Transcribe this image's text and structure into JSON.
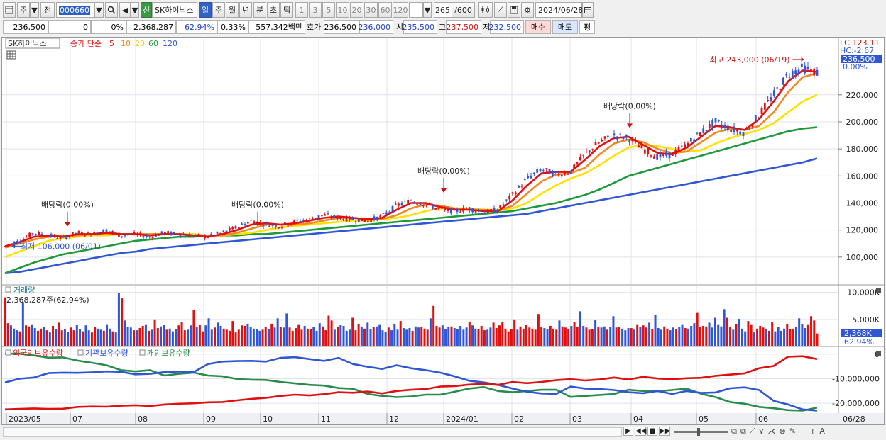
{
  "toolbar": {
    "jong": "주",
    "jeon": "전",
    "code": "000660",
    "shin": "신",
    "stock_name": "SK하이닉스",
    "periods": [
      "일",
      "주",
      "월",
      "년",
      "분",
      "초",
      "틱"
    ],
    "active_period": "일",
    "tick_units": [
      "1",
      "3",
      "5",
      "10",
      "20",
      "30",
      "60",
      "120"
    ],
    "count": "265",
    "count_total": "/600",
    "date": "2024/06/28"
  },
  "quote": {
    "price": "236,500",
    "change": "0",
    "change_pct": "0%",
    "volume": "2,368,287",
    "vol_ratio": "62.94%",
    "turnover_pct": "0.33%",
    "amount": "557,342백만",
    "hoga_label": "호가",
    "hoga_value": "236,500",
    "hoga_value2": "236,000",
    "open_label": "시",
    "open": "235,500",
    "high_label": "고",
    "high": "237,500",
    "low_label": "저",
    "low": "232,500",
    "buy_button": "매수",
    "sell_button": "매도",
    "pyeong_button": "평"
  },
  "legend": {
    "stock": "SK하이닉스",
    "price_label": "종가 단순",
    "ma_periods": [
      "5",
      "10",
      "20",
      "60",
      "120"
    ]
  },
  "volume_panel": {
    "title": "거래량",
    "subtitle": "2,368,287주(62.94%)"
  },
  "holdings_panel": {
    "items": [
      "외국인보유수량",
      "기관보유수량",
      "개인보유수량"
    ]
  },
  "chart_data": [
    {
      "type": "candlestick",
      "title": "SK하이닉스",
      "x_start": "2023/05",
      "x_end": "06/28",
      "x_ticks": [
        "2023/05",
        "07",
        "08",
        "09",
        "10",
        "11",
        "12",
        "2024/01",
        "02",
        "03",
        "04",
        "05",
        "06",
        "06/28"
      ],
      "ylim": [
        80000,
        255000
      ],
      "y_ticks": [
        "100,000",
        "120,000",
        "140,000",
        "160,000",
        "180,000",
        "200,000",
        "220,000"
      ],
      "current_price": "236,500",
      "current_pct": "0.00%",
      "lc": "LC:123.11",
      "hc": "HC:-2.67",
      "high_label": "최고 243,000 (06/19)",
      "high": 243000,
      "low_label": "최저 106,000 (06/01)",
      "low": 106000,
      "dividend_markers": [
        {
          "label": "배당락(0.00%)",
          "month": "07",
          "price": 120000
        },
        {
          "label": "배당락(0.00%)",
          "month": "10",
          "price": 120000
        },
        {
          "label": "배당락(0.00%)",
          "month": "12",
          "price": 145000
        },
        {
          "label": "배당락(0.00%)",
          "month": "04",
          "price": 193000
        }
      ],
      "series": [
        {
          "name": "종가",
          "color": "#e01010",
          "values": [
            108000,
            112000,
            118000,
            116000,
            114000,
            118000,
            117000,
            120000,
            116000,
            117000,
            115000,
            118000,
            117000,
            116000,
            115000,
            118000,
            122000,
            127000,
            124000,
            123000,
            126000,
            128000,
            131000,
            129000,
            128000,
            127000,
            130000,
            138000,
            142000,
            139000,
            135000,
            134000,
            136000,
            133000,
            135000,
            146000,
            158000,
            165000,
            161000,
            163000,
            176000,
            185000,
            190000,
            188000,
            180000,
            174000,
            176000,
            183000,
            192000,
            200000,
            195000,
            192000,
            205000,
            220000,
            235000,
            240000,
            236500
          ]
        },
        {
          "name": "5",
          "color": "#e01010",
          "values": [
            108000,
            111000,
            115000,
            116000,
            115000,
            117000,
            117000,
            118000,
            117000,
            117000,
            116000,
            117000,
            117000,
            116000,
            115000,
            117000,
            120000,
            124000,
            125000,
            124000,
            125000,
            127000,
            129000,
            130000,
            129000,
            128000,
            129000,
            135000,
            140000,
            140000,
            137000,
            135000,
            135000,
            134000,
            134000,
            142000,
            153000,
            162000,
            163000,
            163000,
            172000,
            182000,
            188000,
            189000,
            183000,
            177000,
            176000,
            181000,
            189000,
            197000,
            196000,
            194000,
            202000,
            215000,
            230000,
            238000,
            237000
          ]
        },
        {
          "name": "10",
          "color": "#f08a20",
          "values": [
            107000,
            110000,
            113000,
            115000,
            116000,
            116000,
            117000,
            117000,
            117000,
            117000,
            117000,
            117000,
            117000,
            116000,
            116000,
            116000,
            118000,
            121000,
            124000,
            124000,
            124000,
            125000,
            127000,
            129000,
            129000,
            128000,
            128000,
            131000,
            136000,
            139000,
            138000,
            136000,
            135000,
            135000,
            134000,
            138000,
            147000,
            156000,
            161000,
            162000,
            166000,
            176000,
            184000,
            187000,
            185000,
            180000,
            177000,
            178000,
            185000,
            192000,
            195000,
            194000,
            197000,
            207000,
            222000,
            233000,
            236000
          ]
        },
        {
          "name": "20",
          "color": "#ffe100",
          "values": [
            100000,
            104000,
            108000,
            112000,
            114000,
            115000,
            116000,
            116000,
            117000,
            117000,
            117000,
            117000,
            117000,
            117000,
            116000,
            116000,
            117000,
            118000,
            120000,
            122000,
            123000,
            124000,
            125000,
            126000,
            127000,
            127000,
            128000,
            129000,
            131000,
            134000,
            136000,
            136000,
            136000,
            135000,
            135000,
            136000,
            140000,
            147000,
            153000,
            158000,
            162000,
            168000,
            175000,
            181000,
            183000,
            182000,
            180000,
            178000,
            179000,
            184000,
            188000,
            191000,
            194000,
            199000,
            207000,
            215000,
            220000
          ]
        },
        {
          "name": "60",
          "color": "#1f9a3a",
          "values": [
            88000,
            92000,
            96000,
            99000,
            102000,
            104000,
            106000,
            108000,
            110000,
            112000,
            113000,
            114000,
            115000,
            115000,
            116000,
            116000,
            116000,
            117000,
            117000,
            118000,
            119000,
            120000,
            121000,
            122000,
            123000,
            124000,
            125000,
            126000,
            127000,
            128000,
            129000,
            130000,
            131000,
            132000,
            133000,
            134000,
            136000,
            138000,
            140000,
            143000,
            146000,
            150000,
            155000,
            160000,
            163000,
            166000,
            169000,
            172000,
            175000,
            178000,
            181000,
            184000,
            187000,
            190000,
            193000,
            195000,
            196000
          ]
        },
        {
          "name": "120",
          "color": "#2f56d6",
          "values": [
            88000,
            89000,
            91000,
            93000,
            95000,
            97000,
            99000,
            101000,
            103000,
            104000,
            106000,
            107000,
            108000,
            109000,
            110000,
            111000,
            112000,
            113000,
            114000,
            115000,
            116000,
            117000,
            118000,
            119000,
            120000,
            121000,
            122000,
            123000,
            124000,
            125000,
            126000,
            127000,
            128000,
            129000,
            130000,
            131000,
            132000,
            134000,
            136000,
            138000,
            140000,
            142000,
            144000,
            146000,
            148000,
            150000,
            152000,
            154000,
            156000,
            158000,
            160000,
            162000,
            164000,
            166000,
            168000,
            170000,
            173000
          ]
        }
      ]
    },
    {
      "type": "bar",
      "title": "거래량",
      "ylim": [
        0,
        11000
      ],
      "y_ticks": [
        "10,000K",
        "5,000K"
      ],
      "current": "2,368K",
      "current_pct": "62.94%",
      "values": [
        9100,
        4300,
        3900,
        3300,
        3000,
        2800,
        8200,
        3900,
        3700,
        4100,
        3400,
        2900,
        3300,
        3600,
        3000,
        2600,
        3800,
        3200,
        4400,
        3000,
        3200,
        2700,
        3500,
        3000,
        4000,
        3200,
        2800,
        3900,
        3000,
        2600,
        3600,
        3300,
        3100,
        2900,
        4100,
        3300,
        2800,
        2600,
        9900,
        8900,
        4800,
        3600,
        3500,
        3000,
        3000,
        3400,
        3800,
        4100,
        2900,
        3100,
        5000,
        3400,
        3700,
        4000,
        3100,
        3300,
        2800,
        3200,
        3900,
        4500,
        3000,
        3100,
        3900,
        6800,
        3600,
        4000,
        2800,
        3900,
        5200,
        3100,
        3500,
        4400,
        3800,
        3300,
        3100,
        2900,
        4700,
        2600,
        3100,
        3900,
        3800,
        4200,
        3600,
        3300,
        3200,
        2900,
        3100,
        3600,
        3200,
        4200,
        3500,
        5200,
        3600,
        3500,
        6100,
        3500,
        2900,
        3400,
        4100,
        3100,
        3800,
        3300,
        3200,
        3600,
        2900,
        4300,
        3700,
        3000,
        5700,
        4800,
        3100,
        3600,
        4000,
        3800,
        2900,
        3100,
        5300,
        3000,
        4200,
        3600,
        3300,
        4400,
        3200,
        3600,
        3700,
        4100,
        3000,
        2700,
        3500,
        3000,
        4200,
        3100,
        4700,
        3400,
        3100,
        3400,
        2900,
        3700,
        3500,
        3600,
        3300,
        3100,
        5200,
        7500,
        3800,
        3500,
        3900,
        3200,
        3600,
        3700,
        3400,
        3200,
        3800,
        3100,
        3500,
        4600,
        3900,
        3300,
        3200,
        3800,
        3000,
        3100,
        3500,
        4400,
        3400,
        3900,
        4600,
        3300,
        2800,
        3200,
        5000,
        3100,
        3700,
        3300,
        4000,
        3500,
        3300,
        3100,
        6000,
        3600,
        3400,
        3200,
        3800,
        3300,
        3100,
        4800,
        3700,
        3500,
        3200,
        3800,
        4500,
        3600,
        6500,
        3800,
        3500,
        3100,
        3200,
        4900,
        3600,
        3500,
        3700,
        3100,
        3600,
        5600,
        3500,
        3600,
        3300,
        3000,
        3400,
        3400,
        3100,
        4100,
        3600,
        3900,
        3500,
        4400,
        3200,
        5900,
        3400,
        3100,
        3700,
        3300,
        3000,
        3500,
        3200,
        3600,
        4100,
        3400,
        3300,
        3800,
        4300,
        6200,
        3600,
        3800,
        3700,
        4400,
        3500,
        5300,
        4100,
        3700,
        6900,
        5300,
        3600,
        3100,
        4200,
        5100,
        3300,
        2800,
        4700,
        4100,
        2600,
        3300,
        3800,
        3500,
        3300,
        2900,
        4500,
        2800,
        3600,
        2900,
        3300,
        4200,
        3200,
        3300,
        3600,
        5200,
        4200,
        3400,
        4100,
        5600,
        4800,
        2400
      ]
    },
    {
      "type": "line",
      "title": "외국인보유수량",
      "ylim": [
        -24000,
        2000
      ],
      "y_ticks": [
        "0",
        "-10,000,000",
        "-20,000,000"
      ],
      "series": [
        {
          "name": "외국인보유수량",
          "color": "#e01010",
          "values": [
            -22500,
            -22300,
            -22100,
            -22300,
            -22200,
            -21500,
            -21300,
            -21400,
            -21000,
            -20800,
            -21100,
            -20500,
            -20200,
            -20000,
            -19600,
            -19500,
            -18800,
            -18200,
            -17800,
            -17000,
            -16500,
            -16800,
            -16300,
            -15500,
            -15700,
            -15200,
            -16000,
            -15000,
            -14500,
            -14200,
            -13200,
            -13000,
            -12400,
            -12100,
            -12500,
            -11300,
            -11800,
            -11300,
            -10600,
            -10200,
            -10700,
            -10300,
            -9500,
            -10300,
            -9200,
            -9900,
            -10200,
            -9800,
            -9600,
            -8800,
            -8300,
            -7800,
            -5700,
            -4800,
            -1000,
            -800,
            -2000
          ]
        },
        {
          "name": "기관보유수량",
          "color": "#2f56d6",
          "values": [
            -11500,
            -10000,
            -9500,
            -7700,
            -7500,
            -7600,
            -7400,
            -7000,
            -7200,
            -8200,
            -8000,
            -7300,
            -7100,
            -7300,
            -4000,
            -3000,
            -2800,
            -2700,
            -3000,
            -1500,
            -1200,
            -2000,
            -2700,
            -1500,
            -4000,
            -5100,
            -6000,
            -4500,
            -5700,
            -6500,
            -7500,
            -9000,
            -10800,
            -11500,
            -12500,
            -14000,
            -15300,
            -16000,
            -16200,
            -13200,
            -14000,
            -14200,
            -14600,
            -15500,
            -15900,
            -15000,
            -16200,
            -15000,
            -15800,
            -15600,
            -13900,
            -13500,
            -14600,
            -19000,
            -20500,
            -22500,
            -23000
          ]
        },
        {
          "name": "개인보유수량",
          "color": "#2a8c4a",
          "values": [
            200,
            200,
            -500,
            -1400,
            -1300,
            -2600,
            -3500,
            -4500,
            -6500,
            -7000,
            -6500,
            -8700,
            -8000,
            -7500,
            -8700,
            -9000,
            -10100,
            -10400,
            -10500,
            -11300,
            -11900,
            -12500,
            -12800,
            -13800,
            -14100,
            -16200,
            -17000,
            -17500,
            -17200,
            -16500,
            -16500,
            -15300,
            -14000,
            -13400,
            -15000,
            -15500,
            -15000,
            -14500,
            -14500,
            -17400,
            -17000,
            -16600,
            -16200,
            -14500,
            -15000,
            -15100,
            -14600,
            -14000,
            -16100,
            -17500,
            -19500,
            -20200,
            -21500,
            -22000,
            -22800,
            -23000,
            -21800
          ]
        }
      ]
    }
  ]
}
